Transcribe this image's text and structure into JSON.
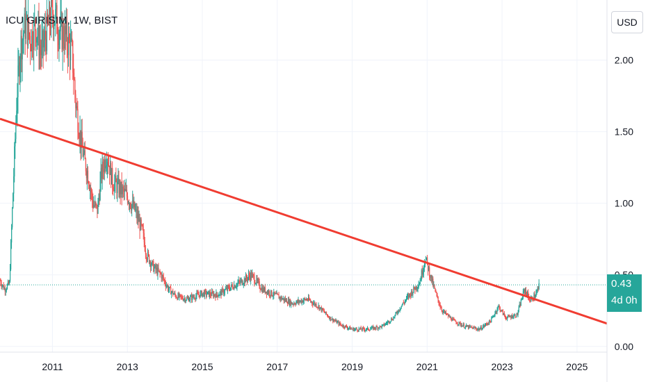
{
  "header": {
    "symbol_label": "ICU GIRISIM, 1W, BIST"
  },
  "price_scale": {
    "currency_button": "USD"
  },
  "last_price": {
    "value_label": "0.43",
    "countdown_label": "4d 0h"
  },
  "colors": {
    "up": "#26a69a",
    "down": "#ef5350",
    "trendline": "#f03c31",
    "badge": "#26a69a",
    "axis_text": "#131722",
    "grid": "#f0f3fa"
  },
  "chart_data": {
    "type": "candlestick",
    "interval": "weekly",
    "x_axis": {
      "range": [
        2009.6,
        2025.8
      ],
      "ticks": [
        2011,
        2013,
        2015,
        2017,
        2019,
        2021,
        2023,
        2025
      ],
      "tick_labels": [
        "2011",
        "2013",
        "2015",
        "2017",
        "2019",
        "2021",
        "2023",
        "2025"
      ]
    },
    "y_axis": {
      "range": [
        -0.04,
        2.42
      ],
      "ticks": [
        0.0,
        0.5,
        1.0,
        1.5,
        2.0
      ],
      "tick_labels": [
        "0.00",
        "0.50",
        "1.00",
        "1.50",
        "2.00"
      ],
      "position": "right"
    },
    "grid": true,
    "last_price": 0.43,
    "price_anchors": [
      [
        2009.6,
        0.46
      ],
      [
        2009.72,
        0.4
      ],
      [
        2009.85,
        0.44
      ],
      [
        2009.95,
        1.1
      ],
      [
        2010.05,
        1.75
      ],
      [
        2010.15,
        2.1
      ],
      [
        2010.28,
        2.25
      ],
      [
        2010.42,
        2.15
      ],
      [
        2010.55,
        2.25
      ],
      [
        2010.7,
        2.05
      ],
      [
        2010.85,
        2.2
      ],
      [
        2011.0,
        2.35
      ],
      [
        2011.2,
        2.2
      ],
      [
        2011.38,
        2.15
      ],
      [
        2011.52,
        2.05
      ],
      [
        2011.62,
        1.7
      ],
      [
        2011.75,
        1.45
      ],
      [
        2011.85,
        1.3
      ],
      [
        2011.95,
        1.2
      ],
      [
        2012.08,
        1.0
      ],
      [
        2012.2,
        0.95
      ],
      [
        2012.3,
        1.2
      ],
      [
        2012.45,
        1.35
      ],
      [
        2012.6,
        1.15
      ],
      [
        2012.8,
        1.1
      ],
      [
        2013.0,
        1.05
      ],
      [
        2013.2,
        0.95
      ],
      [
        2013.4,
        0.8
      ],
      [
        2013.5,
        0.65
      ],
      [
        2013.7,
        0.55
      ],
      [
        2013.9,
        0.5
      ],
      [
        2014.1,
        0.4
      ],
      [
        2014.3,
        0.35
      ],
      [
        2014.6,
        0.33
      ],
      [
        2015.0,
        0.37
      ],
      [
        2015.4,
        0.36
      ],
      [
        2015.8,
        0.42
      ],
      [
        2016.1,
        0.46
      ],
      [
        2016.3,
        0.5
      ],
      [
        2016.6,
        0.4
      ],
      [
        2017.0,
        0.35
      ],
      [
        2017.4,
        0.3
      ],
      [
        2017.8,
        0.33
      ],
      [
        2018.1,
        0.28
      ],
      [
        2018.4,
        0.2
      ],
      [
        2018.7,
        0.15
      ],
      [
        2019.0,
        0.12
      ],
      [
        2019.4,
        0.12
      ],
      [
        2019.8,
        0.14
      ],
      [
        2020.1,
        0.2
      ],
      [
        2020.3,
        0.28
      ],
      [
        2020.5,
        0.35
      ],
      [
        2020.8,
        0.45
      ],
      [
        2020.95,
        0.62
      ],
      [
        2021.1,
        0.48
      ],
      [
        2021.25,
        0.35
      ],
      [
        2021.4,
        0.25
      ],
      [
        2021.7,
        0.18
      ],
      [
        2022.0,
        0.14
      ],
      [
        2022.4,
        0.12
      ],
      [
        2022.7,
        0.18
      ],
      [
        2022.9,
        0.28
      ],
      [
        2023.1,
        0.2
      ],
      [
        2023.4,
        0.22
      ],
      [
        2023.6,
        0.4
      ],
      [
        2023.75,
        0.32
      ],
      [
        2023.9,
        0.36
      ],
      [
        2024.0,
        0.43
      ]
    ],
    "trendline": {
      "start": [
        2009.6,
        1.59
      ],
      "end": [
        2025.8,
        0.16
      ]
    },
    "annotations": [
      "dotted last-price line at 0.43"
    ]
  }
}
